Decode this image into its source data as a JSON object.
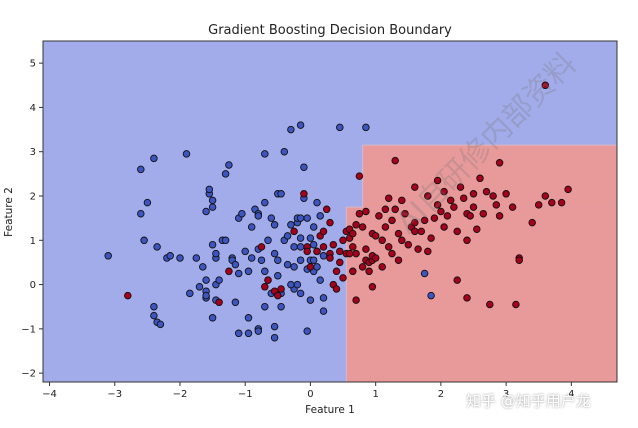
{
  "chart_data": {
    "type": "scatter",
    "title": "Gradient Boosting Decision Boundary",
    "xlabel": "Feature 1",
    "ylabel": "Feature 2",
    "xlim": [
      -4.1,
      4.7
    ],
    "ylim": [
      -2.2,
      5.5
    ],
    "xticks": [
      -4,
      -3,
      -2,
      -1,
      0,
      1,
      2,
      3,
      4
    ],
    "yticks": [
      -2,
      -1,
      0,
      1,
      2,
      3,
      4,
      5
    ],
    "grid": false,
    "colors": {
      "class0_region": "#a3acea",
      "class1_region": "#e89a9a",
      "class0_point": "#3d55c0",
      "class1_point": "#a5001c",
      "edge": "#111111"
    },
    "decision_regions": [
      {
        "class": 1,
        "x": [
          0.55,
          4.7
        ],
        "y": [
          -2.2,
          1.75
        ]
      },
      {
        "class": 1,
        "x": [
          0.8,
          4.7
        ],
        "y": [
          1.75,
          3.15
        ]
      }
    ],
    "series": [
      {
        "class": 0,
        "points": [
          [
            -3.1,
            0.65
          ],
          [
            -2.6,
            2.6
          ],
          [
            -2.5,
            1.85
          ],
          [
            -2.4,
            2.85
          ],
          [
            -2.55,
            1.0
          ],
          [
            -2.35,
            0.85
          ],
          [
            -2.2,
            0.6
          ],
          [
            -2.15,
            0.65
          ],
          [
            -2.4,
            -0.5
          ],
          [
            -2.4,
            -0.7
          ],
          [
            -2.35,
            -0.85
          ],
          [
            -2.3,
            -0.9
          ],
          [
            -2.0,
            0.6
          ],
          [
            -1.9,
            2.95
          ],
          [
            -1.85,
            -0.2
          ],
          [
            -1.7,
            -0.05
          ],
          [
            -1.75,
            0.6
          ],
          [
            -1.65,
            0.4
          ],
          [
            -1.6,
            1.65
          ],
          [
            -1.6,
            0.1
          ],
          [
            -1.6,
            -0.15
          ],
          [
            -1.6,
            -0.3
          ],
          [
            -1.6,
            -0.25
          ],
          [
            -1.55,
            2.05
          ],
          [
            -1.55,
            2.15
          ],
          [
            -1.5,
            1.75
          ],
          [
            -1.5,
            1.9
          ],
          [
            -1.5,
            0.9
          ],
          [
            -1.5,
            -0.75
          ],
          [
            -1.45,
            0.6
          ],
          [
            -1.45,
            0.7
          ],
          [
            -1.45,
            0.0
          ],
          [
            -1.4,
            0.1
          ],
          [
            -1.35,
            1.0
          ],
          [
            -1.3,
            1.0
          ],
          [
            -1.3,
            2.5
          ],
          [
            -1.25,
            2.7
          ],
          [
            -1.2,
            0.6
          ],
          [
            -1.2,
            0.55
          ],
          [
            -1.15,
            0.45
          ],
          [
            -1.15,
            -0.4
          ],
          [
            -1.1,
            1.5
          ],
          [
            -1.1,
            0.25
          ],
          [
            -1.1,
            -1.1
          ],
          [
            -1.05,
            1.6
          ],
          [
            -1.0,
            0.75
          ],
          [
            -0.95,
            0.3
          ],
          [
            -0.95,
            -0.75
          ],
          [
            -0.95,
            -1.1
          ],
          [
            -0.9,
            1.3
          ],
          [
            -0.9,
            0.6
          ],
          [
            -0.85,
            1.7
          ],
          [
            -0.8,
            1.6
          ],
          [
            -0.8,
            1.55
          ],
          [
            -0.8,
            0.8
          ],
          [
            -0.8,
            -1.0
          ],
          [
            -0.8,
            -1.05
          ],
          [
            -0.75,
            0.55
          ],
          [
            -0.7,
            1.85
          ],
          [
            -0.7,
            2.95
          ],
          [
            -0.7,
            0.3
          ],
          [
            -0.7,
            -0.5
          ],
          [
            -0.65,
            1.0
          ],
          [
            -0.65,
            0.1
          ],
          [
            -0.6,
            1.5
          ],
          [
            -0.6,
            -0.2
          ],
          [
            -0.55,
            1.35
          ],
          [
            -0.55,
            0.7
          ],
          [
            -0.55,
            -0.95
          ],
          [
            -0.55,
            -1.2
          ],
          [
            -0.5,
            2.05
          ],
          [
            -0.5,
            0.55
          ],
          [
            -0.5,
            0.2
          ],
          [
            -0.45,
            2.05
          ],
          [
            -0.45,
            -0.2
          ],
          [
            -0.45,
            -0.5
          ],
          [
            -0.4,
            1.0
          ],
          [
            -0.4,
            3.0
          ],
          [
            -0.35,
            0.45
          ],
          [
            -0.35,
            1.1
          ],
          [
            -0.3,
            1.35
          ],
          [
            -0.3,
            3.5
          ],
          [
            -0.25,
            0.85
          ],
          [
            -0.25,
            0.4
          ],
          [
            -0.25,
            -0.1
          ],
          [
            -0.2,
            1.4
          ],
          [
            -0.2,
            1.5
          ],
          [
            -0.15,
            1.5
          ],
          [
            -0.15,
            1.05
          ],
          [
            -0.15,
            0.85
          ],
          [
            -0.15,
            0.55
          ],
          [
            -0.15,
            -0.2
          ],
          [
            -0.1,
            1.95
          ],
          [
            -0.1,
            2.65
          ],
          [
            -0.05,
            1.5
          ],
          [
            -0.05,
            0.35
          ],
          [
            -0.05,
            -1.05
          ],
          [
            0.0,
            1.05
          ],
          [
            0.0,
            0.55
          ],
          [
            0.0,
            -0.35
          ],
          [
            0.05,
            1.3
          ],
          [
            0.05,
            0.9
          ],
          [
            0.05,
            0.3
          ],
          [
            0.1,
            0.75
          ],
          [
            0.1,
            0.4
          ],
          [
            0.1,
            1.85
          ],
          [
            0.15,
            1.55
          ],
          [
            0.15,
            0.1
          ],
          [
            0.2,
            0.65
          ],
          [
            0.2,
            -0.3
          ],
          [
            0.2,
            -0.6
          ],
          [
            -0.15,
            3.6
          ],
          [
            0.45,
            3.55
          ],
          [
            0.85,
            3.55
          ],
          [
            1.75,
            0.25
          ],
          [
            1.85,
            -0.25
          ],
          [
            -2.6,
            1.6
          ],
          [
            -1.45,
            -0.35
          ],
          [
            -0.2,
            0.0
          ],
          [
            0.05,
            0.55
          ],
          [
            -0.3,
            0.0
          ]
        ]
      },
      {
        "class": 1,
        "points": [
          [
            -2.8,
            -0.25
          ],
          [
            -1.4,
            -0.4
          ],
          [
            -1.25,
            0.3
          ],
          [
            -0.75,
            0.85
          ],
          [
            -0.7,
            -0.05
          ],
          [
            -0.65,
            0.1
          ],
          [
            -0.55,
            -0.15
          ],
          [
            -0.5,
            -0.25
          ],
          [
            -0.45,
            -0.1
          ],
          [
            -0.25,
            1.2
          ],
          [
            -0.1,
            2.05
          ],
          [
            -0.05,
            0.85
          ],
          [
            -0.05,
            0.75
          ],
          [
            0.0,
            0.4
          ],
          [
            0.1,
            0.75
          ],
          [
            0.15,
            1.1
          ],
          [
            0.2,
            0.85
          ],
          [
            0.2,
            1.2
          ],
          [
            0.25,
            1.7
          ],
          [
            0.3,
            1.4
          ],
          [
            0.3,
            0.7
          ],
          [
            0.3,
            0.6
          ],
          [
            0.35,
            0.9
          ],
          [
            0.35,
            0.0
          ],
          [
            0.4,
            -0.1
          ],
          [
            0.45,
            0.75
          ],
          [
            0.45,
            0.5
          ],
          [
            0.5,
            1.0
          ],
          [
            0.5,
            0.15
          ],
          [
            0.55,
            1.2
          ],
          [
            0.55,
            0.7
          ],
          [
            0.6,
            1.25
          ],
          [
            0.6,
            1.05
          ],
          [
            0.6,
            0.7
          ],
          [
            0.65,
            1.15
          ],
          [
            0.65,
            0.85
          ],
          [
            0.65,
            0.3
          ],
          [
            0.7,
            1.35
          ],
          [
            0.7,
            0.7
          ],
          [
            0.7,
            -0.35
          ],
          [
            0.75,
            2.45
          ],
          [
            0.75,
            1.6
          ],
          [
            0.8,
            1.3
          ],
          [
            0.8,
            0.4
          ],
          [
            0.85,
            1.65
          ],
          [
            0.85,
            0.55
          ],
          [
            0.85,
            0.8
          ],
          [
            0.9,
            0.5
          ],
          [
            0.9,
            0.3
          ],
          [
            0.95,
            1.15
          ],
          [
            0.95,
            0.55
          ],
          [
            0.95,
            0.65
          ],
          [
            1.0,
            1.1
          ],
          [
            1.0,
            0.6
          ],
          [
            1.05,
            1.55
          ],
          [
            1.1,
            1.0
          ],
          [
            1.1,
            0.4
          ],
          [
            1.15,
            1.7
          ],
          [
            1.15,
            1.3
          ],
          [
            1.2,
            1.95
          ],
          [
            1.2,
            0.85
          ],
          [
            1.25,
            1.45
          ],
          [
            1.25,
            0.7
          ],
          [
            1.3,
            2.8
          ],
          [
            1.3,
            1.7
          ],
          [
            1.35,
            1.15
          ],
          [
            1.4,
            1.9
          ],
          [
            1.4,
            1.0
          ],
          [
            1.45,
            1.6
          ],
          [
            1.5,
            0.9
          ],
          [
            1.55,
            1.3
          ],
          [
            1.6,
            2.2
          ],
          [
            1.6,
            1.2
          ],
          [
            1.65,
            0.8
          ],
          [
            1.7,
            1.2
          ],
          [
            1.75,
            1.45
          ],
          [
            1.8,
            2.0
          ],
          [
            1.8,
            0.75
          ],
          [
            1.85,
            1.05
          ],
          [
            1.9,
            1.5
          ],
          [
            1.95,
            2.35
          ],
          [
            1.95,
            1.8
          ],
          [
            2.0,
            1.65
          ],
          [
            2.05,
            2.1
          ],
          [
            2.05,
            1.3
          ],
          [
            2.1,
            1.55
          ],
          [
            2.15,
            1.9
          ],
          [
            2.2,
            1.75
          ],
          [
            2.25,
            1.2
          ],
          [
            2.25,
            0.1
          ],
          [
            2.3,
            2.2
          ],
          [
            2.35,
            1.95
          ],
          [
            2.4,
            1.6
          ],
          [
            2.4,
            1.0
          ],
          [
            2.45,
            1.55
          ],
          [
            2.5,
            2.05
          ],
          [
            2.5,
            1.75
          ],
          [
            2.55,
            1.25
          ],
          [
            2.6,
            2.4
          ],
          [
            2.65,
            1.6
          ],
          [
            2.7,
            2.1
          ],
          [
            2.75,
            -0.45
          ],
          [
            2.8,
            2.0
          ],
          [
            2.85,
            1.8
          ],
          [
            2.9,
            2.75
          ],
          [
            3.0,
            2.05
          ],
          [
            3.1,
            1.75
          ],
          [
            3.15,
            -0.45
          ],
          [
            3.2,
            0.6
          ],
          [
            3.2,
            0.55
          ],
          [
            3.4,
            1.4
          ],
          [
            3.5,
            1.8
          ],
          [
            3.6,
            2.0
          ],
          [
            3.85,
            1.85
          ],
          [
            3.95,
            2.15
          ],
          [
            3.7,
            1.85
          ],
          [
            3.6,
            4.5
          ],
          [
            0.95,
            -0.05
          ],
          [
            2.4,
            -0.3
          ],
          [
            2.9,
            1.55
          ],
          [
            1.6,
            1.4
          ],
          [
            1.35,
            0.55
          ],
          [
            0.4,
            0.3
          ]
        ]
      }
    ]
  },
  "watermark": {
    "text": "知乎 @知乎用户龙",
    "diagonal_text": "AI自研修内部资料"
  }
}
